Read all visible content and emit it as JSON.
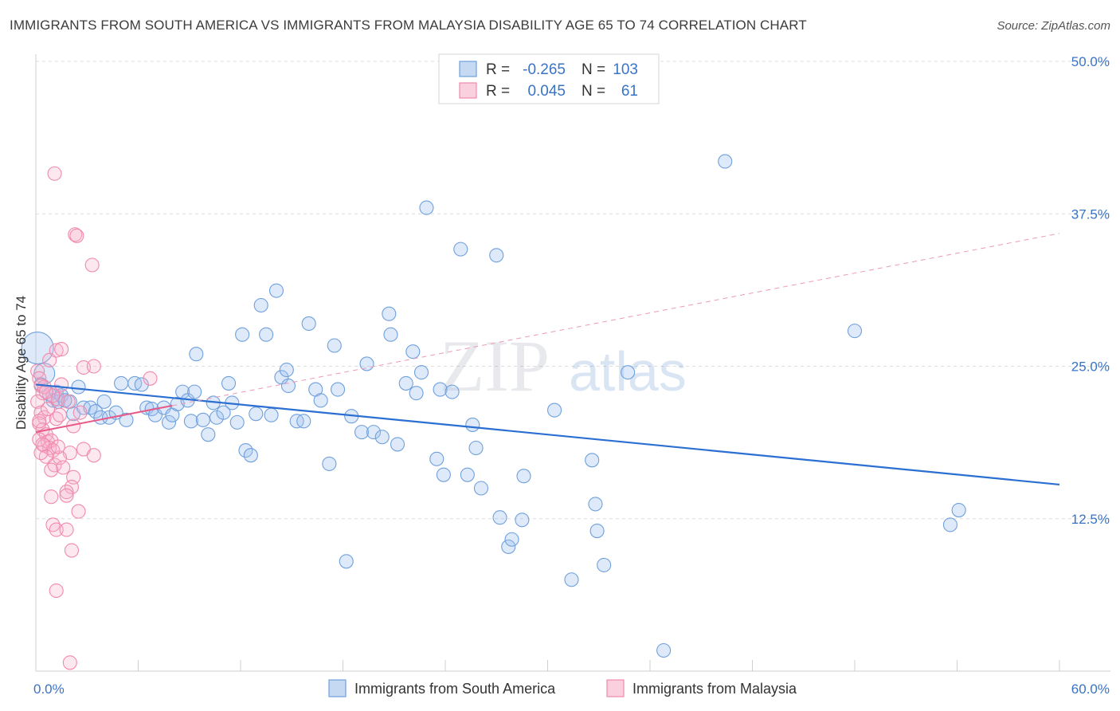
{
  "title": "IMMIGRANTS FROM SOUTH AMERICA VS IMMIGRANTS FROM MALAYSIA DISABILITY AGE 65 TO 74 CORRELATION CHART",
  "source": "Source: ZipAtlas.com",
  "watermark": {
    "zip": "ZIP",
    "atlas": "atlas"
  },
  "colors": {
    "blue": "#6fa0dc",
    "blue_line": "#2a6fd1",
    "pink": "#f08aac",
    "pink_line": "#e75a86",
    "axis_text": "#3a73c6"
  },
  "legend": {
    "rows": [
      {
        "r_label": "R = ",
        "r_value": "-0.265",
        "n_label": "N = ",
        "n_value": "103"
      },
      {
        "r_label": "R = ",
        "r_value": "0.045",
        "n_label": "N = ",
        "n_value": "61"
      }
    ]
  },
  "chart_data": {
    "type": "scatter",
    "xlabel": "",
    "ylabel": "Disability Age 65 to 74",
    "xlim": [
      0,
      60
    ],
    "ylim": [
      0,
      50
    ],
    "x_tick_labels": [
      "0.0%",
      "60.0%"
    ],
    "y_ticks": [
      12.5,
      25.0,
      37.5,
      50.0
    ],
    "y_tick_labels": [
      "12.5%",
      "25.0%",
      "37.5%",
      "50.0%"
    ],
    "series": [
      {
        "name": "Immigrants from South America",
        "r": -0.265,
        "n": 103,
        "trend": {
          "x": [
            0,
            60
          ],
          "y": [
            23.5,
            15.3
          ],
          "style": "solid"
        },
        "points": [
          [
            0.1,
            26.5
          ],
          [
            0.5,
            24.4
          ],
          [
            0.8,
            22.7
          ],
          [
            1.0,
            22.2
          ],
          [
            1.2,
            22.9
          ],
          [
            1.3,
            22.1
          ],
          [
            1.5,
            22.6
          ],
          [
            2.0,
            22.1
          ],
          [
            2.2,
            21.1
          ],
          [
            2.5,
            23.3
          ],
          [
            2.8,
            21.6
          ],
          [
            3.2,
            21.6
          ],
          [
            3.5,
            21.3
          ],
          [
            3.8,
            20.8
          ],
          [
            4.0,
            22.1
          ],
          [
            4.3,
            20.8
          ],
          [
            4.7,
            21.2
          ],
          [
            5.0,
            23.6
          ],
          [
            5.3,
            20.6
          ],
          [
            5.8,
            23.6
          ],
          [
            6.2,
            23.5
          ],
          [
            6.5,
            21.6
          ],
          [
            6.8,
            21.5
          ],
          [
            7.0,
            21.0
          ],
          [
            7.5,
            21.6
          ],
          [
            7.8,
            20.4
          ],
          [
            8.0,
            21.0
          ],
          [
            8.3,
            21.9
          ],
          [
            8.6,
            22.9
          ],
          [
            8.9,
            22.2
          ],
          [
            9.1,
            20.5
          ],
          [
            9.3,
            22.9
          ],
          [
            9.4,
            26.0
          ],
          [
            9.8,
            20.6
          ],
          [
            10.1,
            19.4
          ],
          [
            10.4,
            22.0
          ],
          [
            10.6,
            20.8
          ],
          [
            11.0,
            21.2
          ],
          [
            11.3,
            23.6
          ],
          [
            11.5,
            22.0
          ],
          [
            11.8,
            20.4
          ],
          [
            12.1,
            27.6
          ],
          [
            12.3,
            18.1
          ],
          [
            12.6,
            17.7
          ],
          [
            12.9,
            21.1
          ],
          [
            13.2,
            30.0
          ],
          [
            13.5,
            27.6
          ],
          [
            13.8,
            21.0
          ],
          [
            14.1,
            31.2
          ],
          [
            14.4,
            24.1
          ],
          [
            14.7,
            24.7
          ],
          [
            14.8,
            23.4
          ],
          [
            15.3,
            20.5
          ],
          [
            15.7,
            20.5
          ],
          [
            16.0,
            28.5
          ],
          [
            16.4,
            23.1
          ],
          [
            16.7,
            22.2
          ],
          [
            17.2,
            17.0
          ],
          [
            17.5,
            26.7
          ],
          [
            17.7,
            23.1
          ],
          [
            18.2,
            9.0
          ],
          [
            18.5,
            20.9
          ],
          [
            19.1,
            19.6
          ],
          [
            19.4,
            25.2
          ],
          [
            19.8,
            19.6
          ],
          [
            20.3,
            19.2
          ],
          [
            20.7,
            29.3
          ],
          [
            20.8,
            27.6
          ],
          [
            21.2,
            18.6
          ],
          [
            21.7,
            23.6
          ],
          [
            22.1,
            26.2
          ],
          [
            22.3,
            22.8
          ],
          [
            22.6,
            24.5
          ],
          [
            22.9,
            38.0
          ],
          [
            23.5,
            17.4
          ],
          [
            23.9,
            16.1
          ],
          [
            23.7,
            23.1
          ],
          [
            24.4,
            22.9
          ],
          [
            24.9,
            34.6
          ],
          [
            25.3,
            16.1
          ],
          [
            25.6,
            20.2
          ],
          [
            25.8,
            18.3
          ],
          [
            26.1,
            15.0
          ],
          [
            27.0,
            34.1
          ],
          [
            27.2,
            12.6
          ],
          [
            27.7,
            10.2
          ],
          [
            27.9,
            10.8
          ],
          [
            28.5,
            12.4
          ],
          [
            28.6,
            16.0
          ],
          [
            30.4,
            21.4
          ],
          [
            31.4,
            7.5
          ],
          [
            32.6,
            17.3
          ],
          [
            32.8,
            13.7
          ],
          [
            32.9,
            11.5
          ],
          [
            33.3,
            8.7
          ],
          [
            34.7,
            24.5
          ],
          [
            36.8,
            1.7
          ],
          [
            40.4,
            41.8
          ],
          [
            48.0,
            27.9
          ],
          [
            54.1,
            13.2
          ],
          [
            53.6,
            12.0
          ],
          [
            0.3,
            23.5
          ],
          [
            1.7,
            22.2
          ]
        ]
      },
      {
        "name": "Immigrants from Malaysia",
        "r": 0.045,
        "n": 61,
        "trend": {
          "x": [
            0,
            60
          ],
          "y": [
            19.6,
            35.9
          ],
          "solid_until_x": 8.0
        },
        "points": [
          [
            0.1,
            24.6
          ],
          [
            0.2,
            24.0
          ],
          [
            0.3,
            23.4
          ],
          [
            0.4,
            22.8
          ],
          [
            0.1,
            22.1
          ],
          [
            0.3,
            21.2
          ],
          [
            0.5,
            20.8
          ],
          [
            0.2,
            20.3
          ],
          [
            0.4,
            19.8
          ],
          [
            0.6,
            19.4
          ],
          [
            0.2,
            19.0
          ],
          [
            0.7,
            18.8
          ],
          [
            0.5,
            18.5
          ],
          [
            0.9,
            18.9
          ],
          [
            0.8,
            18.3
          ],
          [
            1.0,
            18.1
          ],
          [
            0.6,
            17.6
          ],
          [
            1.1,
            16.9
          ],
          [
            0.9,
            16.5
          ],
          [
            0.3,
            17.9
          ],
          [
            1.2,
            20.7
          ],
          [
            1.4,
            21.0
          ],
          [
            1.3,
            22.3
          ],
          [
            1.0,
            22.6
          ],
          [
            1.5,
            23.5
          ],
          [
            0.8,
            25.5
          ],
          [
            1.2,
            26.3
          ],
          [
            1.5,
            26.4
          ],
          [
            1.1,
            40.8
          ],
          [
            2.3,
            35.8
          ],
          [
            2.4,
            35.7
          ],
          [
            3.3,
            33.3
          ],
          [
            2.8,
            24.9
          ],
          [
            3.4,
            25.0
          ],
          [
            6.7,
            24.0
          ],
          [
            2.2,
            20.1
          ],
          [
            2.0,
            17.9
          ],
          [
            2.8,
            18.2
          ],
          [
            3.4,
            17.7
          ],
          [
            1.4,
            17.5
          ],
          [
            1.6,
            16.7
          ],
          [
            2.2,
            15.9
          ],
          [
            2.1,
            15.1
          ],
          [
            1.8,
            14.7
          ],
          [
            1.8,
            14.4
          ],
          [
            0.9,
            14.3
          ],
          [
            2.5,
            13.1
          ],
          [
            1.0,
            12.0
          ],
          [
            1.2,
            11.6
          ],
          [
            1.8,
            11.6
          ],
          [
            2.1,
            9.9
          ],
          [
            1.2,
            6.6
          ],
          [
            2.0,
            0.7
          ],
          [
            0.5,
            23.3
          ],
          [
            0.7,
            21.5
          ],
          [
            1.9,
            22.1
          ],
          [
            2.6,
            21.2
          ],
          [
            0.2,
            20.5
          ],
          [
            0.4,
            18.6
          ],
          [
            1.3,
            18.4
          ],
          [
            0.6,
            22.9
          ]
        ]
      }
    ],
    "legend_position": "top-center"
  }
}
